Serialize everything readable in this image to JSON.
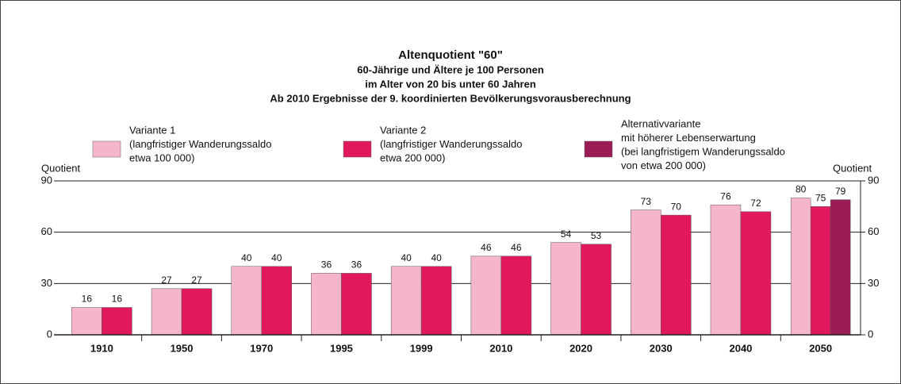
{
  "chart_data": {
    "type": "bar",
    "title": "Altenquotient \"60\"",
    "subtitle": [
      "60-Jährige und Ältere je 100 Personen",
      "im Alter von 20 bis unter 60 Jahren",
      "Ab 2010 Ergebnisse der 9. koordinierten Bevölkerungsvorausberechnung"
    ],
    "y_label": "Quotient",
    "y2_label": "Quotient",
    "categories": [
      "1910",
      "1950",
      "1970",
      "1995",
      "1999",
      "2010",
      "2020",
      "2030",
      "2040",
      "2050"
    ],
    "series": [
      {
        "name": "Variante 1",
        "note": [
          "(langfristiger Wanderungssaldo",
          "etwa 100 000)"
        ],
        "color": "#f5b5cd",
        "values": [
          16,
          27,
          40,
          36,
          40,
          46,
          54,
          73,
          76,
          80
        ]
      },
      {
        "name": "Variante 2",
        "note": [
          "(langfristiger Wanderungssaldo",
          "etwa 200 000)"
        ],
        "color": "#e2185f",
        "values": [
          16,
          27,
          40,
          36,
          40,
          46,
          53,
          70,
          72,
          75
        ]
      },
      {
        "name": "Alternativvariante",
        "note": [
          "mit höherer Lebenserwartung",
          "(bei langfristigem Wanderungssaldo",
          "von etwa 200 000)"
        ],
        "color": "#9a1b56",
        "values": [
          null,
          null,
          null,
          null,
          null,
          null,
          null,
          null,
          null,
          79
        ]
      }
    ],
    "ylim": [
      0,
      90
    ],
    "yticks": [
      0,
      30,
      60,
      90
    ],
    "y2lim": [
      0,
      90
    ],
    "y2ticks": [
      0,
      30,
      60,
      90
    ],
    "grid": true
  }
}
